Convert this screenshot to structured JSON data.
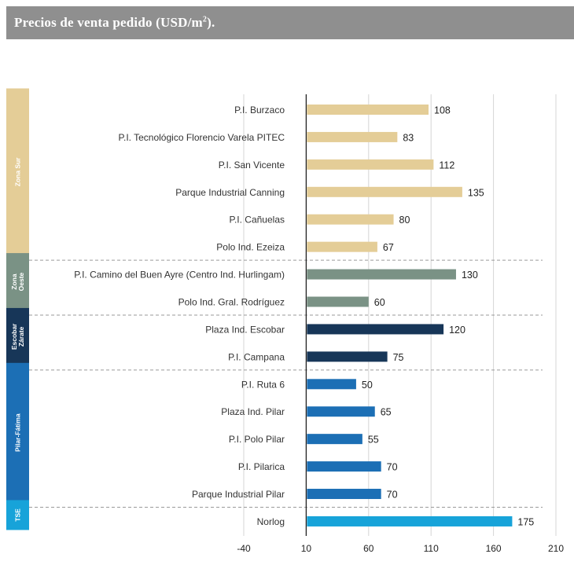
{
  "header": {
    "title": "Precios de venta pedido (USD/m",
    "title_sup": "2",
    "title_end": ")."
  },
  "chart_data": {
    "type": "bar",
    "orientation": "horizontal",
    "title": "Precios de venta pedido (USD/m2).",
    "xlim": [
      -40,
      210
    ],
    "xticks": [
      -40,
      10,
      60,
      110,
      160,
      210
    ],
    "bar_origin": 10,
    "grid": true,
    "groups": [
      {
        "name": "Zona Sur",
        "label_lines": [
          "Zona Sur"
        ],
        "color": "#e4cd97",
        "label_color": "#e4cd97",
        "items": [
          {
            "label": "P.I. Burzaco",
            "value": 108
          },
          {
            "label": "P.I. Tecnológico Florencio Varela PITEC",
            "value": 83
          },
          {
            "label": "P.I. San Vicente",
            "value": 112
          },
          {
            "label": "Parque Industrial Canning",
            "value": 135
          },
          {
            "label": "P.I. Cañuelas",
            "value": 80
          },
          {
            "label": "Polo Ind. Ezeiza",
            "value": 67
          }
        ]
      },
      {
        "name": "Zona Oeste",
        "label_lines": [
          "Zona",
          "Oeste"
        ],
        "color": "#7a9285",
        "label_color": "#7a9285",
        "items": [
          {
            "label": "P.I. Camino del Buen Ayre (Centro Ind. Hurlingam)",
            "value": 130
          },
          {
            "label": "Polo Ind. Gral. Rodríguez",
            "value": 60
          }
        ]
      },
      {
        "name": "Escobar Zárate",
        "label_lines": [
          "Escobar",
          "Zárate"
        ],
        "color": "#173658",
        "label_color": "#173658",
        "items": [
          {
            "label": "Plaza Ind. Escobar",
            "value": 120
          },
          {
            "label": "P.I. Campana",
            "value": 75
          }
        ]
      },
      {
        "name": "Pilar-Fátima",
        "label_lines": [
          "Pilar-Fátima"
        ],
        "color": "#1c6fb5",
        "label_color": "#1c6fb5",
        "items": [
          {
            "label": "P.I. Ruta 6",
            "value": 50
          },
          {
            "label": "Plaza Ind. Pilar",
            "value": 65
          },
          {
            "label": "P.I. Polo Pilar",
            "value": 55
          },
          {
            "label": "P.I. Pilarica",
            "value": 70
          },
          {
            "label": "Parque Industrial Pilar",
            "value": 70
          }
        ]
      },
      {
        "name": "TSE",
        "label_lines": [
          "TSE"
        ],
        "color": "#17a3d9",
        "label_color": "#17a3d9",
        "items": [
          {
            "label": "Norlog",
            "value": 175
          }
        ]
      }
    ]
  }
}
